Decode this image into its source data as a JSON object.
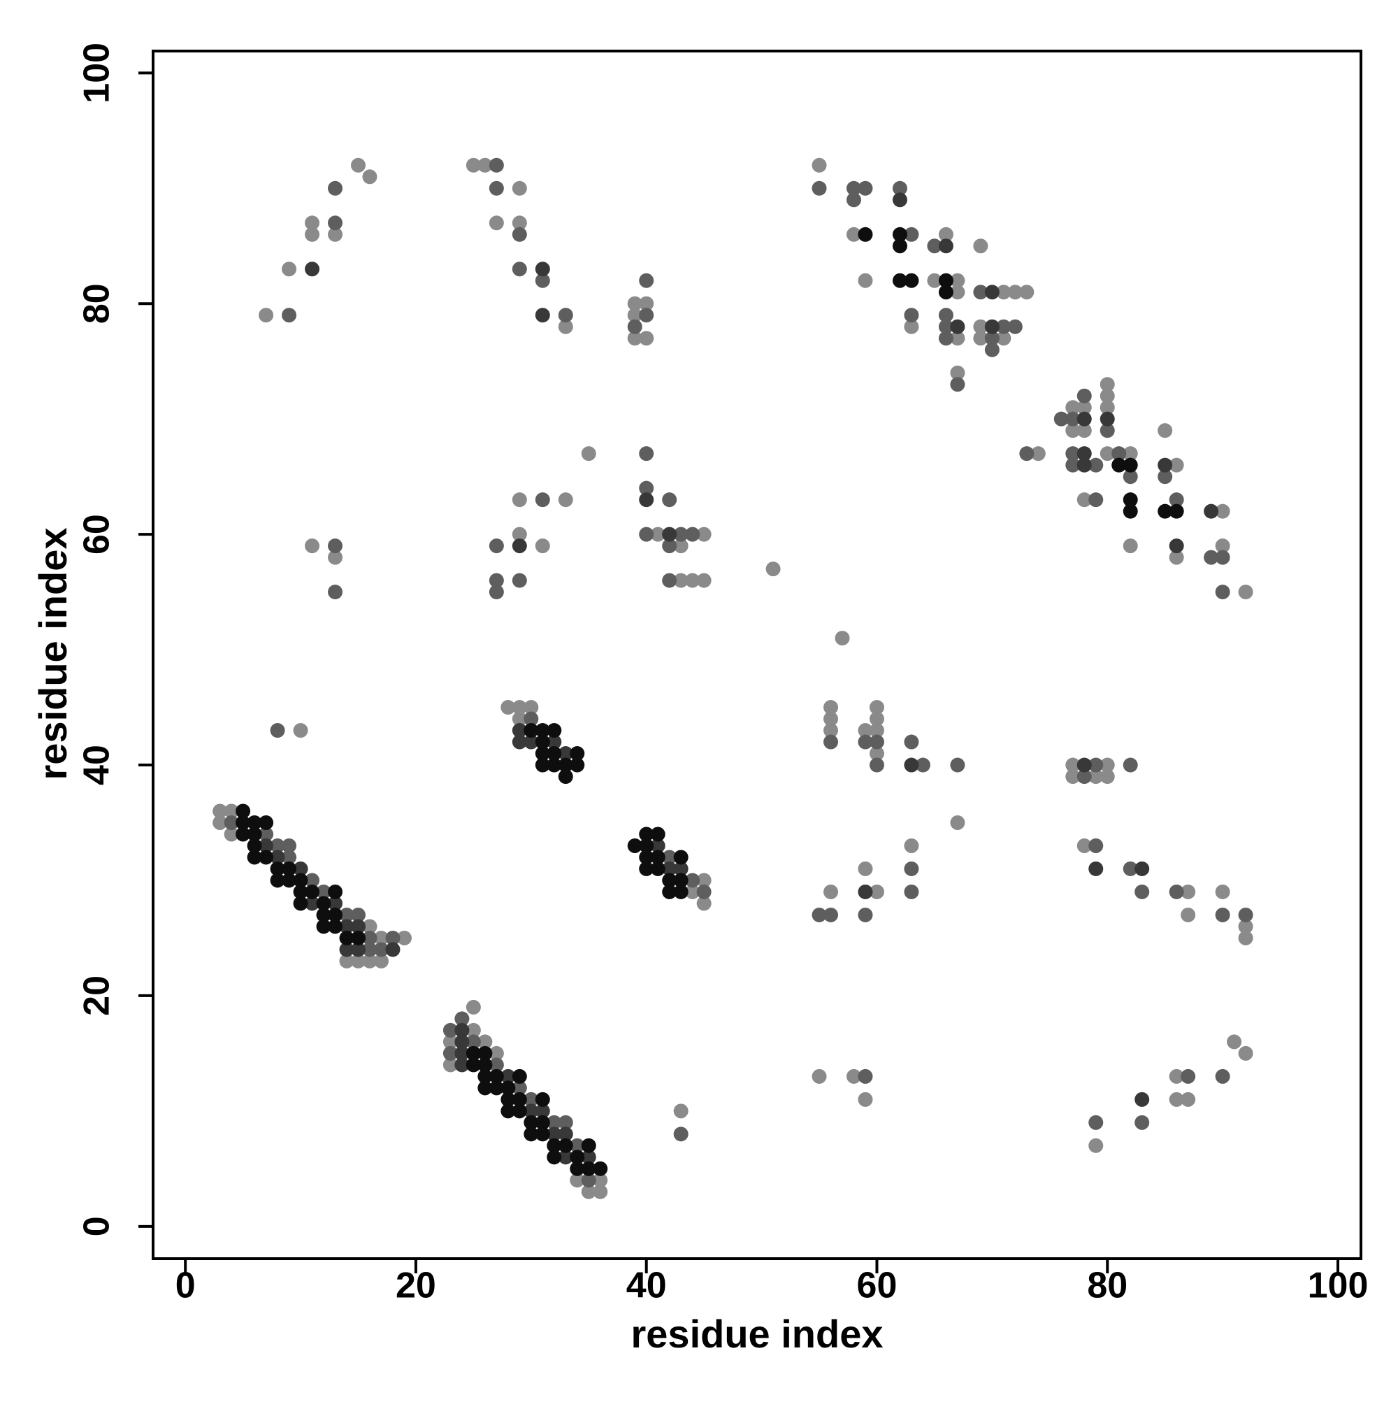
{
  "chart_data": {
    "type": "scatter",
    "x_label": "residue index",
    "y_label": "residue index",
    "xlim": [
      -2.8,
      102
    ],
    "ylim": [
      -2.8,
      101.9
    ],
    "xticks": [
      0,
      20,
      40,
      60,
      80,
      100
    ],
    "yticks": [
      0,
      20,
      40,
      60,
      80,
      100
    ],
    "series": [
      {
        "color": "#8a8a8a",
        "x": [
          3,
          4,
          3,
          4,
          17,
          19,
          14,
          15,
          16,
          17,
          16,
          25,
          25,
          23,
          26,
          27,
          23,
          34,
          36,
          35,
          36,
          28,
          29,
          30,
          29,
          45,
          44,
          45,
          15,
          16,
          11,
          11,
          13,
          9,
          7,
          25,
          26,
          29,
          27,
          29,
          33,
          39,
          40,
          39,
          39,
          40,
          11,
          13,
          29,
          31,
          29,
          33,
          35,
          41,
          45,
          43,
          43,
          44,
          45,
          51,
          10,
          57,
          55,
          58,
          59,
          63,
          66,
          65,
          67,
          67,
          67,
          69,
          71,
          72,
          73,
          69,
          69,
          71,
          67,
          74,
          77,
          78,
          77,
          78,
          78,
          80,
          80,
          80,
          80,
          82,
          82,
          85,
          86,
          86,
          90,
          90,
          92,
          56,
          56,
          56,
          59,
          60,
          60,
          60,
          60,
          67,
          77,
          80,
          77,
          79,
          80,
          56,
          59,
          60,
          63,
          78,
          87,
          87,
          90,
          92,
          92,
          55,
          58,
          59,
          43,
          79,
          86,
          86,
          87,
          91,
          92
        ],
        "values": [
          36,
          36,
          35,
          34,
          25,
          25,
          23,
          23,
          23,
          23,
          26,
          19,
          17,
          16,
          16,
          15,
          14,
          4,
          4,
          3,
          3,
          45,
          45,
          45,
          44,
          30,
          29,
          28,
          92,
          91,
          87,
          86,
          86,
          83,
          79,
          92,
          92,
          90,
          87,
          87,
          78,
          80,
          80,
          79,
          77,
          77,
          59,
          58,
          60,
          59,
          63,
          63,
          67,
          60,
          60,
          59,
          56,
          56,
          56,
          57,
          43,
          51,
          92,
          86,
          82,
          78,
          86,
          82,
          82,
          81,
          77,
          85,
          81,
          81,
          81,
          78,
          77,
          77,
          74,
          67,
          71,
          71,
          69,
          69,
          63,
          73,
          72,
          71,
          67,
          67,
          59,
          69,
          66,
          58,
          62,
          59,
          55,
          45,
          44,
          43,
          43,
          45,
          44,
          43,
          41,
          35,
          40,
          40,
          39,
          39,
          39,
          29,
          31,
          29,
          33,
          33,
          29,
          27,
          29,
          26,
          25,
          13,
          13,
          11,
          10,
          7,
          13,
          11,
          11,
          16,
          15
        ]
      },
      {
        "color": "#5e5e5e",
        "x": [
          4,
          7,
          8,
          9,
          9,
          11,
          12,
          14,
          15,
          16,
          16,
          17,
          18,
          24,
          23,
          25,
          23,
          27,
          29,
          30,
          32,
          33,
          34,
          35,
          30,
          42,
          44,
          45,
          13,
          13,
          9,
          27,
          27,
          29,
          29,
          31,
          33,
          40,
          40,
          39,
          13,
          13,
          27,
          31,
          27,
          27,
          29,
          40,
          40,
          42,
          40,
          43,
          44,
          42,
          42,
          8,
          55,
          58,
          59,
          58,
          62,
          63,
          63,
          65,
          66,
          66,
          66,
          69,
          71,
          72,
          70,
          70,
          67,
          73,
          76,
          77,
          78,
          77,
          77,
          79,
          79,
          80,
          81,
          82,
          85,
          86,
          89,
          90,
          90,
          56,
          59,
          60,
          60,
          63,
          64,
          67,
          79,
          78,
          82,
          55,
          56,
          59,
          63,
          63,
          79,
          82,
          83,
          86,
          90,
          92,
          59,
          43,
          79,
          83,
          87,
          90
        ],
        "values": [
          35,
          34,
          33,
          33,
          32,
          30,
          29,
          27,
          27,
          25,
          24,
          24,
          25,
          18,
          17,
          16,
          15,
          14,
          12,
          11,
          9,
          9,
          7,
          4,
          44,
          32,
          30,
          29,
          90,
          87,
          79,
          92,
          90,
          86,
          83,
          82,
          79,
          82,
          79,
          78,
          59,
          55,
          59,
          63,
          56,
          55,
          56,
          67,
          64,
          63,
          60,
          60,
          60,
          59,
          56,
          43,
          90,
          90,
          90,
          89,
          90,
          86,
          79,
          85,
          79,
          78,
          77,
          81,
          78,
          78,
          77,
          76,
          73,
          67,
          70,
          70,
          72,
          67,
          66,
          66,
          63,
          69,
          67,
          65,
          65,
          63,
          58,
          58,
          55,
          42,
          42,
          42,
          40,
          42,
          40,
          40,
          40,
          39,
          40,
          27,
          27,
          27,
          31,
          29,
          33,
          31,
          29,
          29,
          27,
          27,
          13,
          8,
          9,
          9,
          13,
          13
        ]
      },
      {
        "color": "#383838",
        "x": [
          7,
          8,
          10,
          11,
          13,
          14,
          15,
          14,
          15,
          18,
          24,
          24,
          24,
          24,
          28,
          30,
          31,
          32,
          33,
          33,
          35,
          29,
          29,
          30,
          32,
          33,
          41,
          42,
          43,
          11,
          31,
          31,
          29,
          40,
          42,
          62,
          66,
          67,
          70,
          70,
          78,
          78,
          78,
          80,
          85,
          86,
          89,
          63,
          78,
          59,
          79,
          83,
          83
        ],
        "values": [
          33,
          32,
          31,
          28,
          28,
          26,
          26,
          24,
          24,
          24,
          17,
          16,
          15,
          14,
          13,
          10,
          10,
          8,
          8,
          6,
          6,
          43,
          42,
          42,
          42,
          41,
          33,
          31,
          31,
          83,
          83,
          79,
          59,
          63,
          60,
          89,
          85,
          78,
          81,
          78,
          70,
          67,
          66,
          70,
          66,
          59,
          62,
          40,
          40,
          29,
          31,
          31,
          11
        ]
      },
      {
        "color": "#0e0e0e",
        "x": [
          5,
          5,
          6,
          7,
          5,
          6,
          6,
          6,
          7,
          8,
          9,
          8,
          9,
          10,
          10,
          11,
          13,
          10,
          12,
          12,
          13,
          12,
          13,
          14,
          15,
          25,
          26,
          25,
          26,
          26,
          27,
          29,
          26,
          27,
          28,
          28,
          29,
          31,
          28,
          29,
          30,
          31,
          30,
          31,
          32,
          33,
          35,
          32,
          34,
          34,
          35,
          36,
          30,
          31,
          32,
          31,
          31,
          32,
          34,
          31,
          32,
          33,
          34,
          33,
          40,
          41,
          39,
          40,
          40,
          41,
          43,
          40,
          41,
          42,
          43,
          42,
          43,
          59,
          62,
          62,
          62,
          63,
          66,
          66,
          81,
          82,
          82,
          82,
          85,
          86
        ],
        "values": [
          36,
          35,
          35,
          35,
          34,
          34,
          33,
          32,
          32,
          31,
          31,
          30,
          30,
          30,
          29,
          29,
          29,
          28,
          28,
          27,
          27,
          26,
          26,
          25,
          25,
          15,
          15,
          14,
          14,
          13,
          13,
          13,
          12,
          12,
          12,
          11,
          11,
          11,
          10,
          10,
          9,
          9,
          8,
          8,
          7,
          7,
          7,
          6,
          6,
          5,
          5,
          5,
          43,
          43,
          43,
          42,
          41,
          41,
          41,
          40,
          40,
          40,
          40,
          39,
          34,
          34,
          33,
          33,
          32,
          32,
          32,
          31,
          31,
          30,
          30,
          29,
          29,
          86,
          86,
          85,
          82,
          82,
          82,
          81,
          66,
          66,
          63,
          62,
          62,
          62
        ]
      }
    ]
  }
}
